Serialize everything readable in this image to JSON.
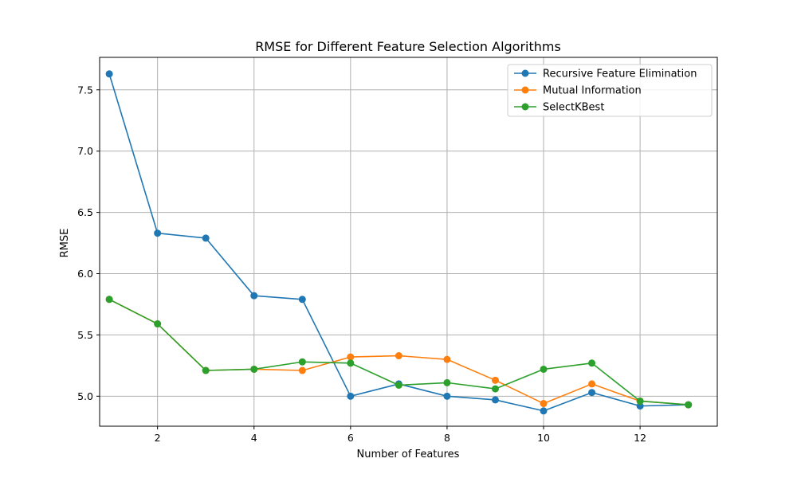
{
  "chart_data": {
    "type": "line",
    "title": "RMSE for Different Feature Selection Algorithms",
    "xlabel": "Number of Features",
    "ylabel": "RMSE",
    "xlim": [
      0.8,
      13.6
    ],
    "ylim": [
      4.755,
      7.765
    ],
    "xticks": [
      2,
      4,
      6,
      8,
      10,
      12
    ],
    "yticks": [
      5.0,
      5.5,
      6.0,
      6.5,
      7.0,
      7.5
    ],
    "ytick_labels": [
      "5.0",
      "5.5",
      "6.0",
      "6.5",
      "7.0",
      "7.5"
    ],
    "grid": true,
    "legend_position": "top-right",
    "x": [
      1,
      2,
      3,
      4,
      5,
      6,
      7,
      8,
      9,
      10,
      11,
      12,
      13
    ],
    "series": [
      {
        "name": "Recursive Feature Elimination",
        "color": "#1f77b4",
        "values": [
          7.63,
          6.33,
          6.29,
          5.82,
          5.79,
          5.0,
          5.1,
          5.0,
          4.97,
          4.88,
          5.03,
          4.92,
          4.93
        ]
      },
      {
        "name": "Mutual Information",
        "color": "#ff7f0e",
        "values": [
          5.79,
          5.59,
          5.21,
          5.22,
          5.21,
          5.32,
          5.33,
          5.3,
          5.13,
          4.94,
          5.1,
          4.96,
          4.93
        ]
      },
      {
        "name": "SelectKBest",
        "color": "#2ca02c",
        "values": [
          5.79,
          5.59,
          5.21,
          5.22,
          5.28,
          5.27,
          5.09,
          5.11,
          5.06,
          5.22,
          5.27,
          4.96,
          4.93
        ]
      }
    ]
  }
}
